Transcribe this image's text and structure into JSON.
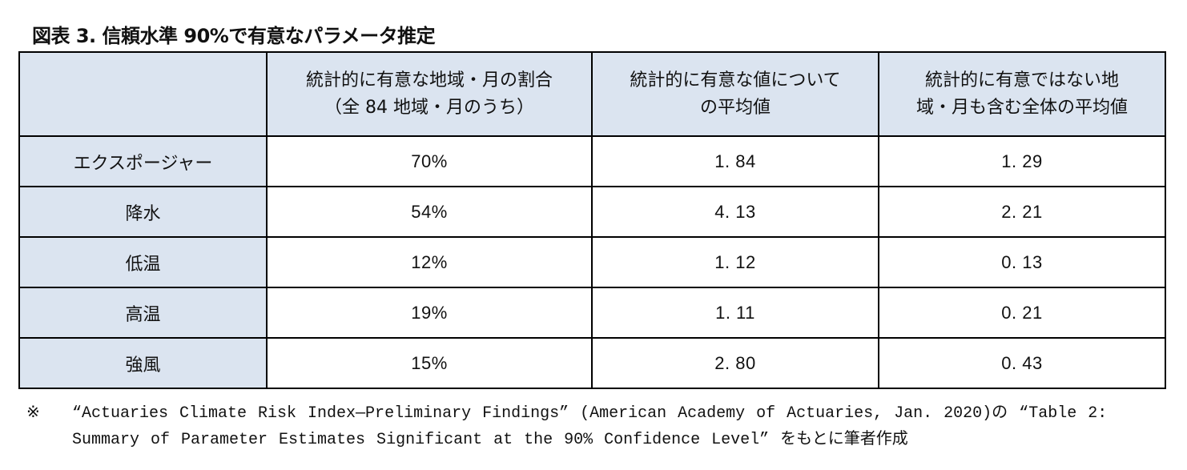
{
  "title": "図表 3.  信頼水準 90%で有意なパラメータ推定",
  "table": {
    "headers": [
      "",
      "統計的に有意な地域・月の割合\n（全 84 地域・月のうち）",
      "統計的に有意な値について\nの平均値",
      "統計的に有意ではない地\n域・月も含む全体の平均値"
    ],
    "header_lines": [
      [
        ""
      ],
      [
        "統計的に有意な地域・月の割合",
        "（全 84 地域・月のうち）"
      ],
      [
        "統計的に有意な値について",
        "の平均値"
      ],
      [
        "統計的に有意ではない地",
        "域・月も含む全体の平均値"
      ]
    ],
    "rows": [
      {
        "label": "エクスポージャー",
        "share": "70%",
        "mean_significant": "1. 84",
        "mean_all": "1. 29"
      },
      {
        "label": "降水",
        "share": "54%",
        "mean_significant": "4. 13",
        "mean_all": "2. 21"
      },
      {
        "label": "低温",
        "share": "12%",
        "mean_significant": "1. 12",
        "mean_all": "0. 13"
      },
      {
        "label": "高温",
        "share": "19%",
        "mean_significant": "1. 11",
        "mean_all": "0. 21"
      },
      {
        "label": "強風",
        "share": "15%",
        "mean_significant": "2. 80",
        "mean_all": "0. 43"
      }
    ]
  },
  "note": {
    "mark": "※",
    "text": "“Actuaries Climate Risk Index—Preliminary Findings” (American Academy of Actuaries, Jan. 2020)の “Table 2: Summary of Parameter Estimates Significant at the 90% Confidence Level” をもとに筆者作成"
  },
  "colors": {
    "header_bg": "#dbe4f0",
    "border": "#000000",
    "body_bg": "#ffffff"
  }
}
